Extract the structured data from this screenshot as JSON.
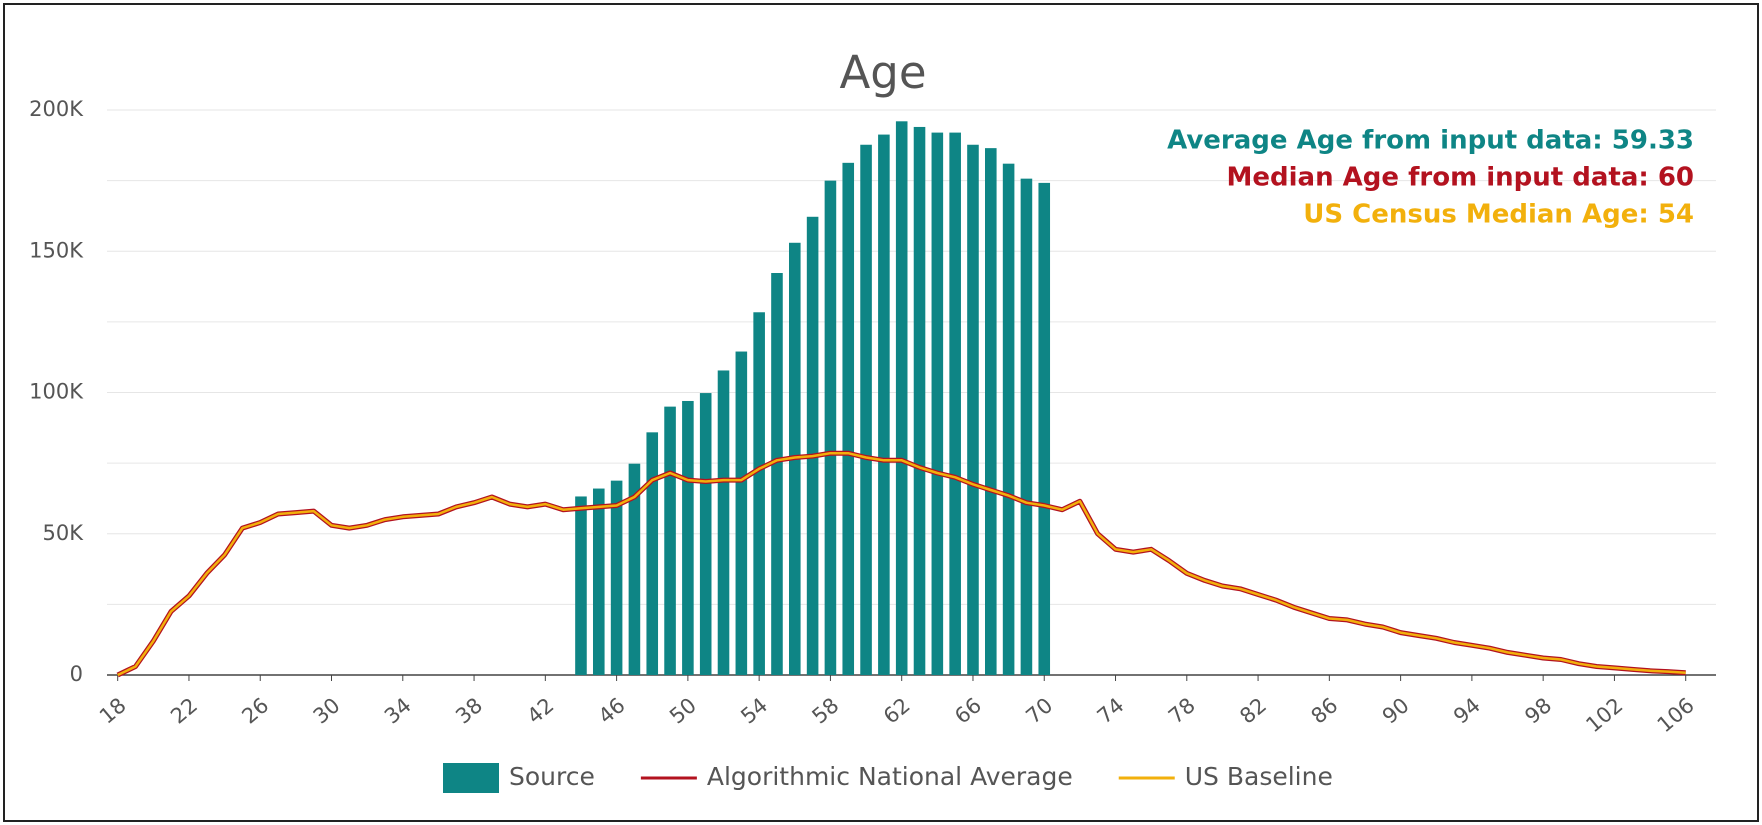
{
  "chart_data": {
    "type": "bar_line",
    "title": "Age",
    "annotations": [
      {
        "text": "Average Age from input data: 59.33",
        "color": "#0e8585"
      },
      {
        "text": "Median Age from input data: 60",
        "color": "#b3121f"
      },
      {
        "text": "US Census Median Age: 54",
        "color": "#f2b00c"
      }
    ],
    "x": [
      18,
      19,
      20,
      21,
      22,
      23,
      24,
      25,
      26,
      27,
      28,
      29,
      30,
      31,
      32,
      33,
      34,
      35,
      36,
      37,
      38,
      39,
      40,
      41,
      42,
      43,
      44,
      45,
      46,
      47,
      48,
      49,
      50,
      51,
      52,
      53,
      54,
      55,
      56,
      57,
      58,
      59,
      60,
      61,
      62,
      63,
      64,
      65,
      66,
      67,
      68,
      69,
      70,
      71,
      72,
      73,
      74,
      75,
      76,
      77,
      78,
      79,
      80,
      81,
      82,
      83,
      84,
      85,
      86,
      87,
      88,
      89,
      90,
      91,
      92,
      93,
      94,
      95,
      96,
      97,
      98,
      99,
      100,
      101,
      102,
      103,
      104,
      105,
      106
    ],
    "xlim": [
      17.4,
      107.7
    ],
    "xticks": [
      18,
      22,
      26,
      30,
      34,
      38,
      42,
      46,
      50,
      54,
      58,
      62,
      66,
      70,
      74,
      78,
      82,
      86,
      90,
      94,
      98,
      102,
      106
    ],
    "ylim": [
      0,
      200000
    ],
    "yticks": [
      0,
      {
        "value": 50000,
        "label": "50K"
      },
      {
        "value": 100000,
        "label": "100K"
      },
      {
        "value": 150000,
        "label": "150K"
      },
      {
        "value": 200000,
        "label": "200K"
      }
    ],
    "minor_yticks": [
      25000,
      75000,
      125000,
      175000
    ],
    "grid": true,
    "legend": "bottom",
    "series": [
      {
        "name": "Source",
        "kind": "bar",
        "color": "#0e8585",
        "values": [
          null,
          null,
          null,
          null,
          null,
          null,
          null,
          null,
          null,
          null,
          null,
          null,
          null,
          null,
          null,
          null,
          null,
          null,
          null,
          null,
          null,
          null,
          null,
          null,
          null,
          null,
          63200,
          66000,
          68800,
          74800,
          85900,
          95000,
          97000,
          99800,
          107800,
          114500,
          128400,
          142300,
          153000,
          162200,
          175000,
          181300,
          187700,
          191300,
          196000,
          194000,
          192000,
          192000,
          187700,
          186500,
          181000,
          175700,
          174200,
          null,
          null,
          null,
          null,
          null,
          null,
          null,
          null,
          null,
          null,
          null,
          null,
          null,
          null,
          null,
          null,
          null,
          null,
          null,
          null,
          null,
          null,
          null,
          null,
          null,
          null,
          null,
          null,
          null,
          null,
          null,
          null,
          null,
          null,
          null,
          null
        ]
      },
      {
        "name": "Algorithmic National Average",
        "kind": "line",
        "color": "#b3121f",
        "values": [
          0,
          3000,
          12000,
          22500,
          28000,
          36000,
          42500,
          52000,
          54000,
          57000,
          57500,
          58000,
          53000,
          52000,
          53000,
          55000,
          56000,
          56500,
          57000,
          59500,
          61000,
          63000,
          60500,
          59500,
          60500,
          58500,
          59000,
          59500,
          60000,
          63000,
          69000,
          71500,
          69000,
          68500,
          69000,
          69000,
          73000,
          76000,
          77000,
          77500,
          78500,
          78500,
          77000,
          76000,
          76000,
          73500,
          71500,
          70000,
          67500,
          65500,
          63500,
          61000,
          60000,
          58500,
          61500,
          50000,
          44500,
          43500,
          44500,
          40500,
          36000,
          33500,
          31500,
          30500,
          28500,
          26500,
          24000,
          22000,
          20000,
          19500,
          18000,
          17000,
          15000,
          14000,
          13000,
          11500,
          10500,
          9500,
          8000,
          7000,
          6000,
          5500,
          4000,
          3000,
          2500,
          2000,
          1500,
          1200,
          800
        ]
      },
      {
        "name": "US Baseline",
        "kind": "line",
        "color": "#f2b00c",
        "values": [
          0,
          3000,
          12000,
          22500,
          28000,
          36000,
          42500,
          52000,
          54000,
          57000,
          57500,
          58000,
          53000,
          52000,
          53000,
          55000,
          56000,
          56500,
          57000,
          59500,
          61000,
          63000,
          60500,
          59500,
          60500,
          58500,
          59000,
          59500,
          60000,
          63000,
          69000,
          71500,
          69000,
          68500,
          69000,
          69000,
          73000,
          76000,
          77000,
          77500,
          78500,
          78500,
          77000,
          76000,
          76000,
          73500,
          71500,
          70000,
          67500,
          65500,
          63500,
          61000,
          60000,
          58500,
          61500,
          50000,
          44500,
          43500,
          44500,
          40500,
          36000,
          33500,
          31500,
          30500,
          28500,
          26500,
          24000,
          22000,
          20000,
          19500,
          18000,
          17000,
          15000,
          14000,
          13000,
          11500,
          10500,
          9500,
          8000,
          7000,
          6000,
          5500,
          4000,
          3000,
          2500,
          2000,
          1500,
          1200,
          800
        ]
      }
    ]
  }
}
